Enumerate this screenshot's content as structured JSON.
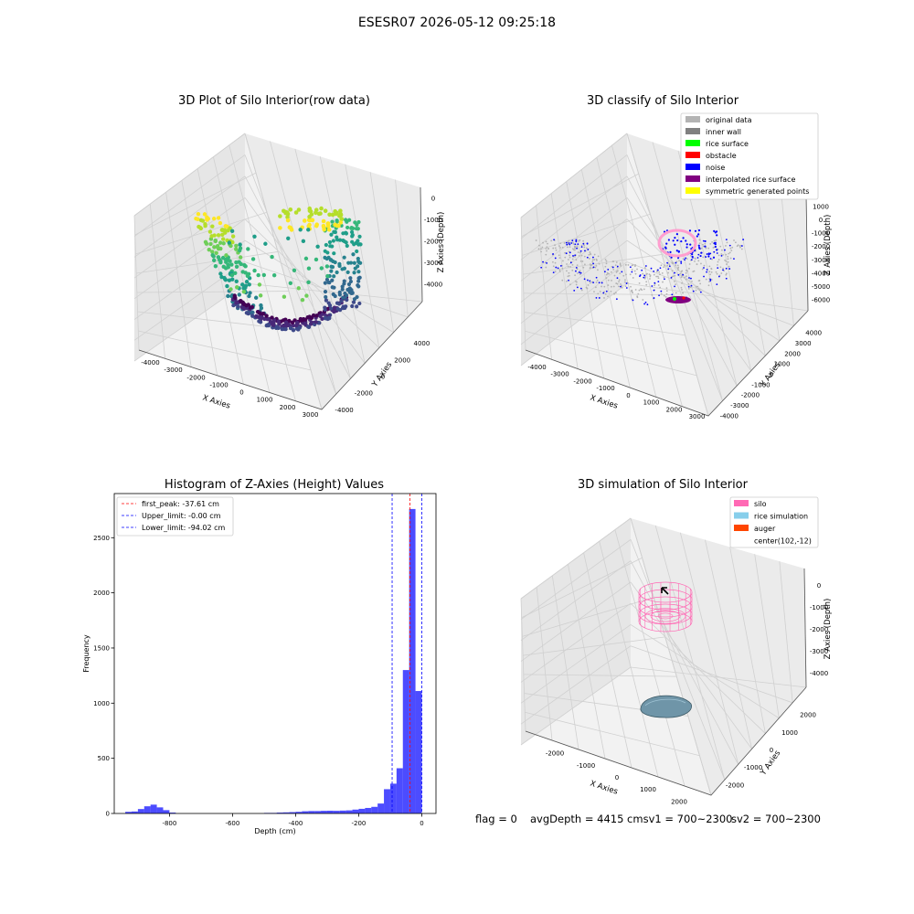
{
  "figure": {
    "suptitle": "ESESR07 2026-05-12 09:25:18",
    "status": {
      "flag": "flag = 0",
      "avg": "avgDepth = 4415 cmsv1 = 700~2300",
      "sv2": "sv2 = 700~2300"
    }
  },
  "chart_data": [
    {
      "type": "scatter",
      "title": "3D Plot of Silo Interior(row data)",
      "xlabel": "X Axies",
      "ylabel": "Y Axies",
      "zlabel": "Z Axies (Depth)",
      "xticks": [
        "-4000",
        "-3000",
        "-2000",
        "-1000",
        "0",
        "1000",
        "2000",
        "3000"
      ],
      "yticks": [
        "-4000",
        "-2000",
        "0",
        "2000",
        "4000"
      ],
      "zticks": [
        "0",
        "-1000",
        "-2000",
        "-3000",
        "-4000"
      ],
      "colormap": "viridis"
    },
    {
      "type": "scatter",
      "title": "3D classify of Silo Interior",
      "xlabel": "X Axies",
      "ylabel": "Y Axies",
      "zlabel": "Z Axies (Depth)",
      "xticks": [
        "-4000",
        "-3000",
        "-2000",
        "-1000",
        "0",
        "1000",
        "2000",
        "3000"
      ],
      "yticks": [
        "-4000",
        "-3000",
        "-2000",
        "-1000",
        "0",
        "1000",
        "2000",
        "3000",
        "4000"
      ],
      "zticks": [
        "1000",
        "0",
        "-1000",
        "-2000",
        "-3000",
        "-4000",
        "-5000",
        "-6000"
      ],
      "legend": [
        {
          "label": "original data",
          "color": "#b3b3b3"
        },
        {
          "label": "inner wall",
          "color": "#808080"
        },
        {
          "label": "rice surface",
          "color": "#00ff00"
        },
        {
          "label": "obstacle",
          "color": "#ff0000"
        },
        {
          "label": "noise",
          "color": "#0000ff"
        },
        {
          "label": "interpolated rice surface",
          "color": "#800080"
        },
        {
          "label": "symmetric generated points",
          "color": "#ffff00"
        }
      ]
    },
    {
      "type": "bar",
      "title": "Histogram of Z-Axies (Height) Values",
      "xlabel": "Depth (cm)",
      "ylabel": "Frequency",
      "xlim": [
        -975,
        45
      ],
      "ylim": [
        0,
        2900
      ],
      "xticks": [
        -800,
        -600,
        -400,
        -200,
        0
      ],
      "yticks": [
        0,
        500,
        1000,
        1500,
        2000,
        2500
      ],
      "bar_color": "#0000ff",
      "bins": [
        [
          -940,
          -920,
          15
        ],
        [
          -920,
          -900,
          18
        ],
        [
          -900,
          -880,
          40
        ],
        [
          -880,
          -860,
          65
        ],
        [
          -860,
          -840,
          80
        ],
        [
          -840,
          -820,
          55
        ],
        [
          -820,
          -800,
          30
        ],
        [
          -800,
          -780,
          8
        ],
        [
          -500,
          -480,
          5
        ],
        [
          -480,
          -460,
          5
        ],
        [
          -460,
          -440,
          8
        ],
        [
          -440,
          -420,
          10
        ],
        [
          -420,
          -400,
          12
        ],
        [
          -400,
          -380,
          15
        ],
        [
          -380,
          -360,
          20
        ],
        [
          -360,
          -340,
          22
        ],
        [
          -340,
          -320,
          22
        ],
        [
          -320,
          -300,
          24
        ],
        [
          -300,
          -280,
          25
        ],
        [
          -280,
          -260,
          24
        ],
        [
          -260,
          -240,
          26
        ],
        [
          -240,
          -220,
          28
        ],
        [
          -220,
          -200,
          35
        ],
        [
          -200,
          -180,
          42
        ],
        [
          -180,
          -160,
          50
        ],
        [
          -160,
          -140,
          60
        ],
        [
          -140,
          -120,
          90
        ],
        [
          -120,
          -100,
          220
        ],
        [
          -100,
          -80,
          270
        ],
        [
          -80,
          -60,
          410
        ],
        [
          -60,
          -40,
          1300
        ],
        [
          -40,
          -20,
          2760
        ],
        [
          -20,
          0,
          1110
        ]
      ],
      "lines": [
        {
          "label": "first_peak: -37.61 cm",
          "x": -37.61,
          "color": "#ff0000"
        },
        {
          "label": "Upper_limit: -0.00 cm",
          "x": -0.0,
          "color": "#0000ff"
        },
        {
          "label": "Lower_limit: -94.02 cm",
          "x": -94.02,
          "color": "#0000ff"
        }
      ]
    },
    {
      "type": "surface",
      "title": "3D simulation of Silo Interior",
      "xlabel": "X Axies",
      "ylabel": "Y Axies",
      "zlabel": "Z Axies (Depth)",
      "xticks": [
        "-2000",
        "-1000",
        "0",
        "1000",
        "2000"
      ],
      "yticks": [
        "-2000",
        "-1000",
        "0",
        "1000",
        "2000"
      ],
      "zticks": [
        "0",
        "-1000",
        "-2000",
        "-3000",
        "-4000"
      ],
      "legend": [
        {
          "label": "silo",
          "color": "#ff69b4"
        },
        {
          "label": "rice simulation",
          "color": "#87ceeb"
        },
        {
          "label": "auger",
          "color": "#ff4500"
        },
        {
          "label": "center(102,-12)",
          "color": ""
        }
      ]
    }
  ]
}
